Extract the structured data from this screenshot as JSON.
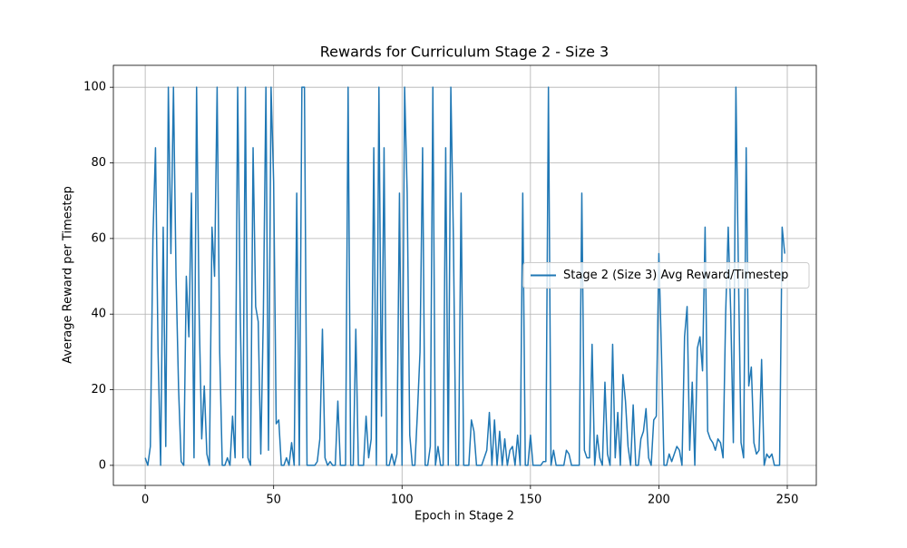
{
  "chart_data": {
    "type": "line",
    "title": "Rewards for Curriculum Stage 2 - Size 3",
    "x_label": "Epoch in Stage 2",
    "y_label": "Average Reward per Timestep",
    "x": [
      0,
      1,
      2,
      3,
      4,
      5,
      6,
      7,
      8,
      9,
      10,
      11,
      12,
      13,
      14,
      15,
      16,
      17,
      18,
      19,
      20,
      21,
      22,
      23,
      24,
      25,
      26,
      27,
      28,
      29,
      30,
      31,
      32,
      33,
      34,
      35,
      36,
      37,
      38,
      39,
      40,
      41,
      42,
      43,
      44,
      45,
      46,
      47,
      48,
      49,
      50,
      51,
      52,
      53,
      54,
      55,
      56,
      57,
      58,
      59,
      60,
      61,
      62,
      63,
      64,
      65,
      66,
      67,
      68,
      69,
      70,
      71,
      72,
      73,
      74,
      75,
      76,
      77,
      78,
      79,
      80,
      81,
      82,
      83,
      84,
      85,
      86,
      87,
      88,
      89,
      90,
      91,
      92,
      93,
      94,
      95,
      96,
      97,
      98,
      99,
      100,
      101,
      102,
      103,
      104,
      105,
      106,
      107,
      108,
      109,
      110,
      111,
      112,
      113,
      114,
      115,
      116,
      117,
      118,
      119,
      120,
      121,
      122,
      123,
      124,
      125,
      126,
      127,
      128,
      129,
      130,
      131,
      132,
      133,
      134,
      135,
      136,
      137,
      138,
      139,
      140,
      141,
      142,
      143,
      144,
      145,
      146,
      147,
      148,
      149,
      150,
      151,
      152,
      153,
      154,
      155,
      156,
      157,
      158,
      159,
      160,
      161,
      162,
      163,
      164,
      165,
      166,
      167,
      168,
      169,
      170,
      171,
      172,
      173,
      174,
      175,
      176,
      177,
      178,
      179,
      180,
      181,
      182,
      183,
      184,
      185,
      186,
      187,
      188,
      189,
      190,
      191,
      192,
      193,
      194,
      195,
      196,
      197,
      198,
      199,
      200,
      201,
      202,
      203,
      204,
      205,
      206,
      207,
      208,
      209,
      210,
      211,
      212,
      213,
      214,
      215,
      216,
      217,
      218,
      219,
      220,
      221,
      222,
      223,
      224,
      225,
      226,
      227,
      228,
      229,
      230,
      231,
      232,
      233,
      234,
      235,
      236,
      237,
      238,
      239,
      240,
      241,
      242,
      243,
      244,
      245,
      246,
      247,
      248,
      249
    ],
    "series": [
      {
        "name": "Stage 2 (Size 3) Avg Reward/Timestep",
        "color": "#1f77b4",
        "values": [
          2,
          0,
          5,
          60,
          84,
          30,
          0,
          63,
          5,
          100,
          56,
          100,
          50,
          20,
          1,
          0,
          50,
          34,
          72,
          2,
          100,
          40,
          7,
          21,
          3,
          0,
          63,
          50,
          100,
          30,
          0,
          0,
          2,
          0,
          13,
          2,
          100,
          40,
          2,
          100,
          2,
          0,
          84,
          42,
          38,
          3,
          40,
          100,
          4,
          100,
          75,
          11,
          12,
          0,
          0,
          2,
          0,
          6,
          0,
          72,
          0,
          100,
          100,
          0,
          0,
          0,
          0,
          1,
          7,
          36,
          2,
          0,
          1,
          0,
          0,
          17,
          0,
          0,
          0,
          100,
          0,
          0,
          36,
          0,
          0,
          0,
          13,
          2,
          7,
          84,
          0,
          100,
          13,
          84,
          0,
          0,
          3,
          0,
          3,
          72,
          0,
          100,
          72,
          8,
          0,
          0,
          14,
          30,
          84,
          0,
          0,
          5,
          100,
          0,
          5,
          0,
          0,
          84,
          0,
          100,
          60,
          0,
          0,
          72,
          0,
          0,
          0,
          12,
          9,
          0,
          0,
          0,
          2,
          4,
          14,
          0,
          12,
          0,
          9,
          0,
          7,
          0,
          4,
          5,
          0,
          8,
          0,
          72,
          0,
          0,
          8,
          0,
          0,
          0,
          0,
          1,
          1,
          100,
          0,
          4,
          0,
          0,
          0,
          0,
          4,
          3,
          0,
          0,
          0,
          0,
          72,
          4,
          2,
          2,
          32,
          0,
          8,
          2,
          0,
          22,
          3,
          0,
          32,
          2,
          14,
          0,
          24,
          17,
          5,
          0,
          16,
          0,
          0,
          7,
          9,
          15,
          2,
          0,
          12,
          13,
          56,
          30,
          0,
          0,
          3,
          1,
          3,
          5,
          4,
          0,
          34,
          42,
          4,
          22,
          0,
          31,
          34,
          25,
          63,
          9,
          7,
          6,
          4,
          7,
          6,
          2,
          40,
          63,
          40,
          6,
          100,
          50,
          6,
          2,
          84,
          21,
          26,
          6,
          3,
          4,
          28,
          0,
          3,
          2,
          3,
          0,
          0,
          0,
          63,
          56
        ]
      }
    ],
    "xlim": [
      -12.4,
      261.3
    ],
    "ylim": [
      -5.3,
      105.8
    ],
    "xticks": [
      0,
      50,
      100,
      150,
      200,
      250
    ],
    "yticks": [
      0,
      20,
      40,
      60,
      80,
      100
    ],
    "grid": true,
    "legend": "center right"
  }
}
